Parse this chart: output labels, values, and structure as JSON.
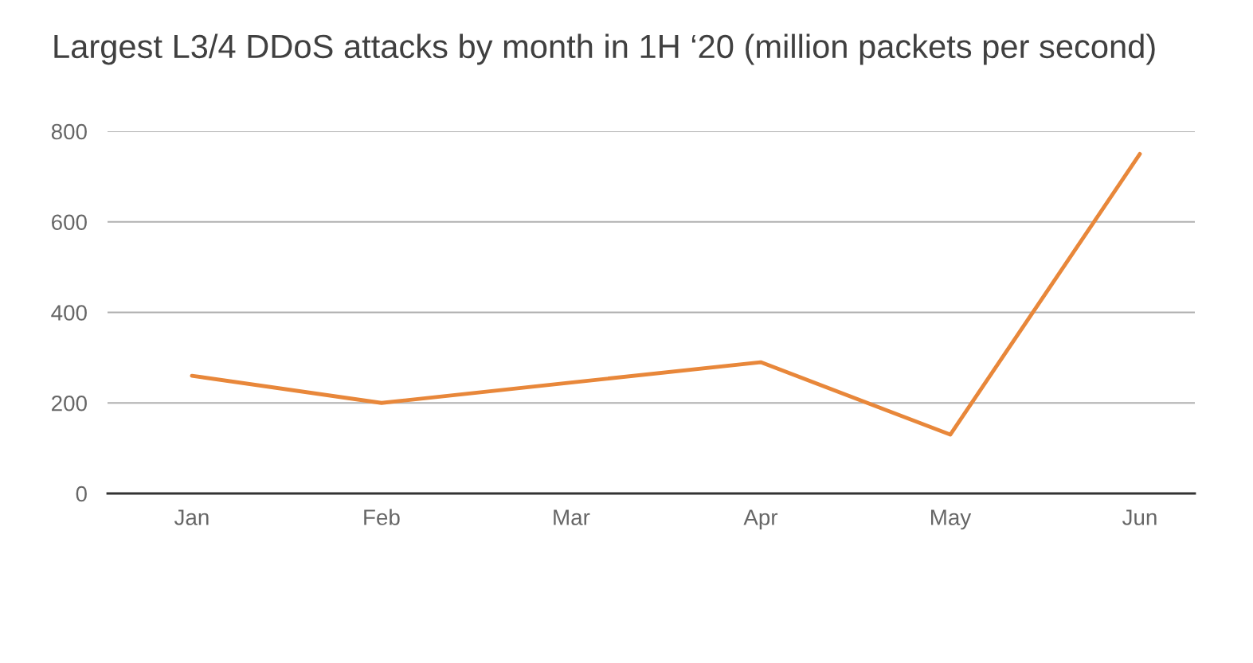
{
  "chart_data": {
    "type": "line",
    "title": "Largest L3/4 DDoS attacks by month in 1H ‘20 (million packets per second)",
    "categories": [
      "Jan",
      "Feb",
      "Mar",
      "Apr",
      "May",
      "Jun"
    ],
    "series": [
      {
        "color": "#e8873a",
        "values": [
          260,
          200,
          245,
          290,
          130,
          750
        ]
      }
    ],
    "ylim": [
      0,
      800
    ],
    "yticks": [
      0,
      200,
      400,
      600,
      800
    ],
    "grid": "y",
    "marker": "none",
    "line_style": "solid"
  }
}
